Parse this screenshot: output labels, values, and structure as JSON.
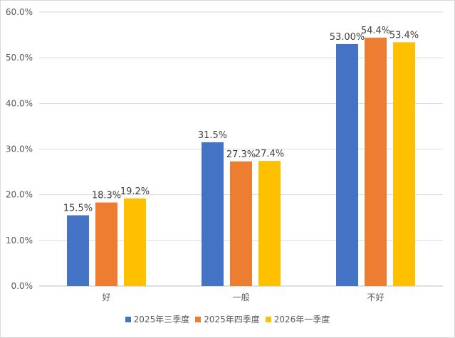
{
  "chart_data": {
    "type": "bar",
    "title": "",
    "xlabel": "",
    "ylabel": "",
    "categories": [
      "好",
      "一般",
      "不好"
    ],
    "series": [
      {
        "name": "2025年三季度",
        "color": "#4472c4",
        "values": [
          15.5,
          31.5,
          53.0
        ],
        "labels": [
          "15.5%",
          "31.5%",
          "53.00%"
        ]
      },
      {
        "name": "2025年四季度",
        "color": "#ed7d31",
        "values": [
          18.3,
          27.3,
          54.4
        ],
        "labels": [
          "18.3%",
          "27.3%",
          "54.4%"
        ]
      },
      {
        "name": "2026年一季度",
        "color": "#ffc000",
        "values": [
          19.2,
          27.4,
          53.4
        ],
        "labels": [
          "19.2%",
          "27.4%",
          "53.4%"
        ]
      }
    ],
    "ylim": [
      0,
      60
    ],
    "yticks": [
      "0.0%",
      "10.0%",
      "20.0%",
      "30.0%",
      "40.0%",
      "50.0%",
      "60.0%"
    ],
    "grid": true,
    "legend_position": "bottom"
  }
}
